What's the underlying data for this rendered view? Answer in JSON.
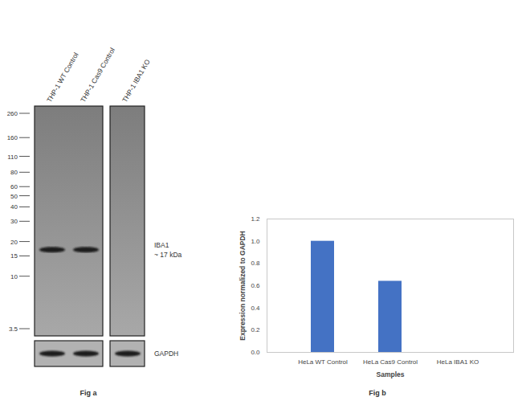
{
  "chart_data": {
    "type": "bar",
    "caption": "Fig b",
    "categories": [
      "HeLa WT Control",
      "HeLa Cas9 Control",
      "HeLa IBA1 KO"
    ],
    "values": [
      1,
      0.64,
      0
    ],
    "color": "#4472c4",
    "x_label": "Samples",
    "y_label": "Expression normalized to GAPDH",
    "ylim": [
      0,
      1.2
    ],
    "yticks": [
      0,
      0.2,
      0.4,
      0.6,
      0.8,
      1,
      1.2
    ],
    "grid": false
  },
  "figure_a": {
    "caption": "Fig a",
    "markers_kda": [
      260,
      160,
      110,
      80,
      60,
      50,
      40,
      30,
      20,
      15,
      10,
      3.5
    ],
    "bands": [
      {
        "name": "IBA1",
        "label_lines": [
          "IBA1",
          "~ 17 kDa"
        ],
        "kda": 17
      },
      {
        "name": "GAPDH",
        "label_lines": [
          "GAPDH"
        ]
      }
    ],
    "panels": [
      [
        {
          "label": "THP-1 WT Control",
          "bands": [
            "IBA1",
            "GAPDH"
          ]
        },
        {
          "label": "THP-1 Cas9 Control",
          "bands": [
            "IBA1",
            "GAPDH"
          ]
        }
      ],
      [
        {
          "label": "THP-1 IBA1 KO",
          "bands": [
            "GAPDH"
          ]
        }
      ]
    ]
  }
}
